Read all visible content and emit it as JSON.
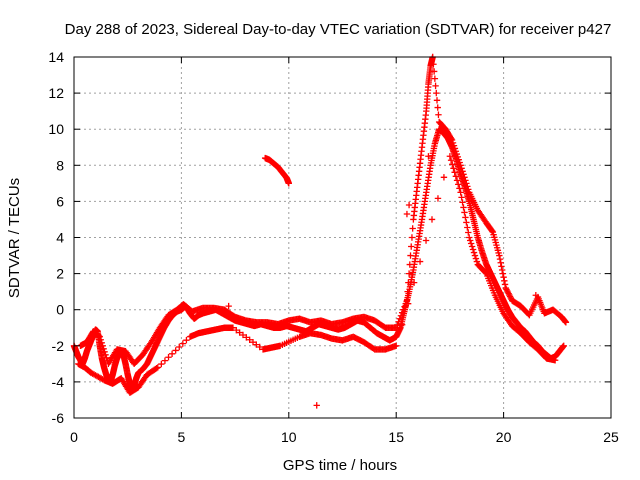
{
  "chart_data": {
    "type": "scatter",
    "title": "Day 288 of 2023, Sidereal Day-to-day VTEC variation (SDTVAR) for receiver p427",
    "xlabel": "GPS time / hours",
    "ylabel": "SDTVAR / TECUs",
    "xlim": [
      0,
      25
    ],
    "ylim": [
      -6,
      14
    ],
    "xticks": [
      "0",
      "5",
      "10",
      "15",
      "20",
      "25"
    ],
    "yticks": [
      "-6",
      "-4",
      "-2",
      "0",
      "2",
      "4",
      "6",
      "8",
      "10",
      "12",
      "14"
    ],
    "grid": true,
    "marker": "plus",
    "series_color": "#ff0000",
    "series": [
      {
        "name": "main-trace",
        "points": [
          [
            0.0,
            -2.0
          ],
          [
            0.1,
            -2.3
          ],
          [
            0.2,
            -2.6
          ],
          [
            0.3,
            -2.8
          ],
          [
            0.4,
            -3.0
          ],
          [
            0.5,
            -2.7
          ],
          [
            0.6,
            -2.3
          ],
          [
            0.7,
            -2.0
          ],
          [
            0.8,
            -1.7
          ],
          [
            0.9,
            -1.4
          ],
          [
            1.0,
            -1.1
          ],
          [
            1.1,
            -1.2
          ],
          [
            1.2,
            -2.0
          ],
          [
            1.3,
            -2.7
          ],
          [
            1.4,
            -3.2
          ],
          [
            1.5,
            -3.6
          ],
          [
            1.6,
            -3.9
          ],
          [
            1.7,
            -4.0
          ],
          [
            1.8,
            -3.6
          ],
          [
            1.9,
            -3.1
          ],
          [
            2.0,
            -2.7
          ],
          [
            2.1,
            -2.5
          ],
          [
            2.2,
            -2.3
          ],
          [
            2.3,
            -2.5
          ],
          [
            2.4,
            -3.0
          ],
          [
            2.5,
            -3.6
          ],
          [
            2.6,
            -4.1
          ],
          [
            2.7,
            -4.4
          ],
          [
            2.8,
            -4.2
          ],
          [
            2.9,
            -3.8
          ],
          [
            3.0,
            -3.5
          ],
          [
            3.2,
            -3.3
          ],
          [
            3.4,
            -3.0
          ],
          [
            3.6,
            -2.5
          ],
          [
            3.8,
            -2.0
          ],
          [
            4.0,
            -1.5
          ],
          [
            4.2,
            -1.0
          ],
          [
            4.4,
            -0.6
          ],
          [
            4.6,
            -0.3
          ],
          [
            4.8,
            -0.1
          ],
          [
            5.0,
            0.0
          ],
          [
            5.2,
            0.2
          ],
          [
            5.4,
            -0.2
          ],
          [
            5.6,
            -0.5
          ],
          [
            5.8,
            -0.3
          ],
          [
            6.0,
            -0.2
          ],
          [
            6.3,
            -0.1
          ],
          [
            6.6,
            0.0
          ],
          [
            6.9,
            -0.2
          ],
          [
            7.2,
            -0.4
          ],
          [
            7.5,
            -0.6
          ],
          [
            7.8,
            -0.7
          ],
          [
            8.1,
            -0.8
          ],
          [
            8.4,
            -0.9
          ],
          [
            8.7,
            -0.8
          ],
          [
            9.0,
            -0.9
          ],
          [
            9.3,
            -1.0
          ],
          [
            9.6,
            -1.0
          ],
          [
            9.9,
            -0.9
          ],
          [
            10.2,
            -1.0
          ],
          [
            10.5,
            -1.1
          ],
          [
            10.8,
            -1.2
          ],
          [
            11.1,
            -1.0
          ],
          [
            11.4,
            -0.8
          ],
          [
            11.7,
            -0.9
          ],
          [
            12.0,
            -1.0
          ],
          [
            12.3,
            -1.1
          ],
          [
            12.6,
            -1.0
          ],
          [
            12.9,
            -0.8
          ],
          [
            13.2,
            -0.6
          ],
          [
            13.5,
            -0.7
          ],
          [
            13.8,
            -1.0
          ],
          [
            14.1,
            -1.3
          ],
          [
            14.4,
            -1.5
          ],
          [
            14.7,
            -1.7
          ],
          [
            15.0,
            -1.5
          ],
          [
            15.2,
            -1.0
          ],
          [
            15.4,
            0.0
          ],
          [
            15.6,
            1.0
          ],
          [
            15.8,
            2.2
          ],
          [
            16.0,
            3.6
          ],
          [
            16.2,
            5.0
          ],
          [
            16.4,
            6.5
          ],
          [
            16.6,
            8.0
          ],
          [
            16.8,
            9.2
          ],
          [
            17.0,
            10.0
          ],
          [
            17.2,
            9.8
          ],
          [
            17.4,
            9.5
          ],
          [
            17.6,
            9.0
          ],
          [
            17.8,
            8.3
          ],
          [
            18.0,
            7.5
          ],
          [
            18.2,
            6.8
          ],
          [
            18.4,
            6.0
          ],
          [
            18.6,
            5.0
          ],
          [
            18.8,
            4.0
          ],
          [
            19.0,
            3.2
          ],
          [
            19.2,
            2.5
          ],
          [
            19.4,
            2.0
          ],
          [
            19.6,
            1.5
          ],
          [
            19.8,
            1.0
          ],
          [
            20.0,
            0.5
          ],
          [
            20.2,
            0.0
          ],
          [
            20.4,
            -0.4
          ],
          [
            20.6,
            -0.7
          ],
          [
            20.8,
            -1.0
          ],
          [
            21.0,
            -1.2
          ],
          [
            21.2,
            -1.5
          ],
          [
            21.4,
            -1.8
          ],
          [
            21.6,
            -2.0
          ],
          [
            21.8,
            -2.3
          ],
          [
            22.0,
            -2.5
          ],
          [
            22.2,
            -2.7
          ],
          [
            22.4,
            -2.6
          ],
          [
            22.6,
            -2.3
          ],
          [
            22.8,
            -2.0
          ]
        ]
      },
      {
        "name": "upper-branch",
        "points": [
          [
            0.3,
            -2.0
          ],
          [
            0.6,
            -1.8
          ],
          [
            0.9,
            -1.2
          ],
          [
            1.2,
            -1.5
          ],
          [
            1.6,
            -3.0
          ],
          [
            2.0,
            -2.2
          ],
          [
            2.4,
            -2.3
          ],
          [
            2.8,
            -3.0
          ],
          [
            3.2,
            -2.5
          ],
          [
            3.6,
            -1.8
          ],
          [
            4.0,
            -1.0
          ],
          [
            4.4,
            -0.3
          ],
          [
            4.8,
            0.0
          ],
          [
            5.1,
            0.3
          ],
          [
            5.5,
            -0.1
          ],
          [
            6.0,
            0.1
          ],
          [
            6.5,
            0.1
          ],
          [
            7.0,
            0.0
          ],
          [
            7.5,
            -0.4
          ],
          [
            8.0,
            -0.6
          ],
          [
            8.5,
            -0.7
          ],
          [
            9.0,
            -0.7
          ],
          [
            9.5,
            -0.8
          ],
          [
            10.0,
            -0.6
          ],
          [
            10.5,
            -0.5
          ],
          [
            11.0,
            -0.7
          ],
          [
            11.5,
            -0.6
          ],
          [
            12.0,
            -0.8
          ],
          [
            12.5,
            -0.7
          ],
          [
            13.0,
            -0.5
          ],
          [
            13.5,
            -0.4
          ],
          [
            14.0,
            -0.6
          ],
          [
            14.5,
            -1.0
          ],
          [
            15.0,
            -1.0
          ],
          [
            15.5,
            0.5
          ],
          [
            15.8,
            5.0
          ],
          [
            16.0,
            7.0
          ],
          [
            16.2,
            9.0
          ],
          [
            16.4,
            11.0
          ],
          [
            16.5,
            12.5
          ],
          [
            16.6,
            13.5
          ],
          [
            16.7,
            14.0
          ],
          [
            17.0,
            10.4
          ],
          [
            17.3,
            10.0
          ],
          [
            17.6,
            9.4
          ],
          [
            18.0,
            8.0
          ],
          [
            18.4,
            6.5
          ],
          [
            18.8,
            5.5
          ],
          [
            19.2,
            4.8
          ],
          [
            19.5,
            4.3
          ],
          [
            19.8,
            3.0
          ],
          [
            20.1,
            1.2
          ],
          [
            20.4,
            0.5
          ],
          [
            20.8,
            0.2
          ],
          [
            21.2,
            -0.3
          ],
          [
            21.6,
            0.7
          ],
          [
            21.9,
            -0.2
          ],
          [
            22.3,
            0.0
          ],
          [
            22.7,
            -0.4
          ],
          [
            22.9,
            -0.7
          ]
        ]
      },
      {
        "name": "lower-branch",
        "points": [
          [
            0.2,
            -3.0
          ],
          [
            0.5,
            -3.2
          ],
          [
            0.8,
            -3.5
          ],
          [
            1.4,
            -3.9
          ],
          [
            1.8,
            -4.1
          ],
          [
            2.2,
            -3.8
          ],
          [
            2.6,
            -4.6
          ],
          [
            3.0,
            -4.3
          ],
          [
            3.4,
            -3.6
          ],
          [
            3.9,
            -3.2
          ],
          [
            5.4,
            -1.5
          ],
          [
            5.8,
            -1.3
          ],
          [
            6.2,
            -1.2
          ],
          [
            6.6,
            -1.1
          ],
          [
            7.0,
            -1.0
          ],
          [
            7.4,
            -1.0
          ],
          [
            8.8,
            -2.2
          ],
          [
            9.2,
            -2.1
          ],
          [
            9.6,
            -2.0
          ],
          [
            10.5,
            -1.5
          ],
          [
            11.0,
            -1.3
          ],
          [
            11.5,
            -1.4
          ],
          [
            12.0,
            -1.6
          ],
          [
            12.5,
            -1.7
          ],
          [
            13.0,
            -1.5
          ],
          [
            13.5,
            -1.8
          ],
          [
            14.0,
            -2.2
          ],
          [
            14.5,
            -2.2
          ],
          [
            15.0,
            -2.0
          ],
          [
            17.5,
            8.5
          ],
          [
            18.0,
            6.5
          ],
          [
            18.4,
            4.0
          ],
          [
            18.8,
            2.5
          ],
          [
            19.2,
            2.0
          ],
          [
            19.6,
            0.8
          ],
          [
            20.0,
            -0.2
          ],
          [
            20.4,
            -0.9
          ],
          [
            20.8,
            -1.3
          ],
          [
            21.2,
            -1.8
          ],
          [
            21.6,
            -2.2
          ],
          [
            22.0,
            -2.7
          ],
          [
            22.4,
            -2.8
          ]
        ]
      },
      {
        "name": "isolated-segment",
        "points": [
          [
            8.9,
            8.4
          ],
          [
            9.1,
            8.3
          ],
          [
            9.3,
            8.1
          ],
          [
            9.5,
            7.9
          ],
          [
            9.7,
            7.6
          ],
          [
            9.9,
            7.3
          ],
          [
            10.0,
            7.0
          ]
        ]
      },
      {
        "name": "outliers",
        "points": [
          [
            11.3,
            -5.3
          ],
          [
            15.5,
            5.3
          ],
          [
            15.6,
            5.8
          ],
          [
            16.5,
            8.5
          ],
          [
            21.5,
            0.8
          ],
          [
            7.2,
            0.2
          ]
        ]
      }
    ]
  }
}
